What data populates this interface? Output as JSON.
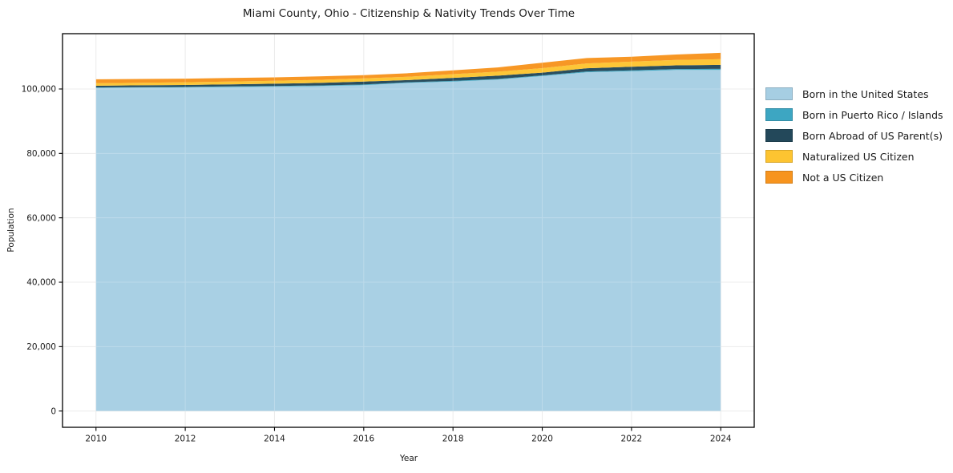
{
  "chart_data": {
    "type": "area",
    "stacked": true,
    "title": "Miami County, Ohio - Citizenship & Nativity Trends Over Time",
    "xlabel": "Year",
    "ylabel": "Population",
    "x": [
      2010,
      2011,
      2012,
      2013,
      2014,
      2015,
      2016,
      2017,
      2018,
      2019,
      2020,
      2021,
      2022,
      2023,
      2024
    ],
    "series": [
      {
        "id": "born-us",
        "name": "Born in the United States",
        "color": "#A6CEE3",
        "values": [
          100350,
          100420,
          100500,
          100620,
          100750,
          100900,
          101200,
          101900,
          102300,
          102900,
          104000,
          105200,
          105500,
          105900,
          105900
        ]
      },
      {
        "id": "pr-islands",
        "name": "Born in Puerto Rico / Islands",
        "color": "#3DA6C2",
        "values": [
          150,
          160,
          150,
          170,
          180,
          180,
          190,
          200,
          210,
          220,
          230,
          250,
          280,
          300,
          350
        ]
      },
      {
        "id": "born-abroad",
        "name": "Born Abroad of US Parent(s)",
        "color": "#23485A",
        "values": [
          500,
          550,
          600,
          650,
          700,
          800,
          900,
          650,
          950,
          1000,
          850,
          1000,
          1100,
          1150,
          1250
        ]
      },
      {
        "id": "naturalized",
        "name": "Naturalized US Citizen",
        "color": "#FDC431",
        "values": [
          800,
          820,
          850,
          880,
          920,
          950,
          1000,
          1050,
          1150,
          1250,
          1400,
          1500,
          1600,
          1650,
          1750
        ]
      },
      {
        "id": "not-citizen",
        "name": "Not a US Citizen",
        "color": "#F7941E",
        "values": [
          1200,
          1170,
          1100,
          1100,
          1050,
          1070,
          1010,
          1100,
          1190,
          1330,
          1690,
          1650,
          1520,
          1700,
          1980
        ]
      }
    ],
    "xlim": [
      2009.25,
      2024.75
    ],
    "ylim": [
      -5052,
      117173
    ],
    "x_ticks": [
      2010,
      2012,
      2014,
      2016,
      2018,
      2020,
      2022,
      2024
    ],
    "y_ticks": [
      {
        "value": 0,
        "label": "0"
      },
      {
        "value": 20000,
        "label": "20,000"
      },
      {
        "value": 40000,
        "label": "40,000"
      },
      {
        "value": 60000,
        "label": "60,000"
      },
      {
        "value": 80000,
        "label": "80,000"
      },
      {
        "value": 100000,
        "label": "100,000"
      }
    ],
    "grid": true,
    "legend_position": "right"
  }
}
